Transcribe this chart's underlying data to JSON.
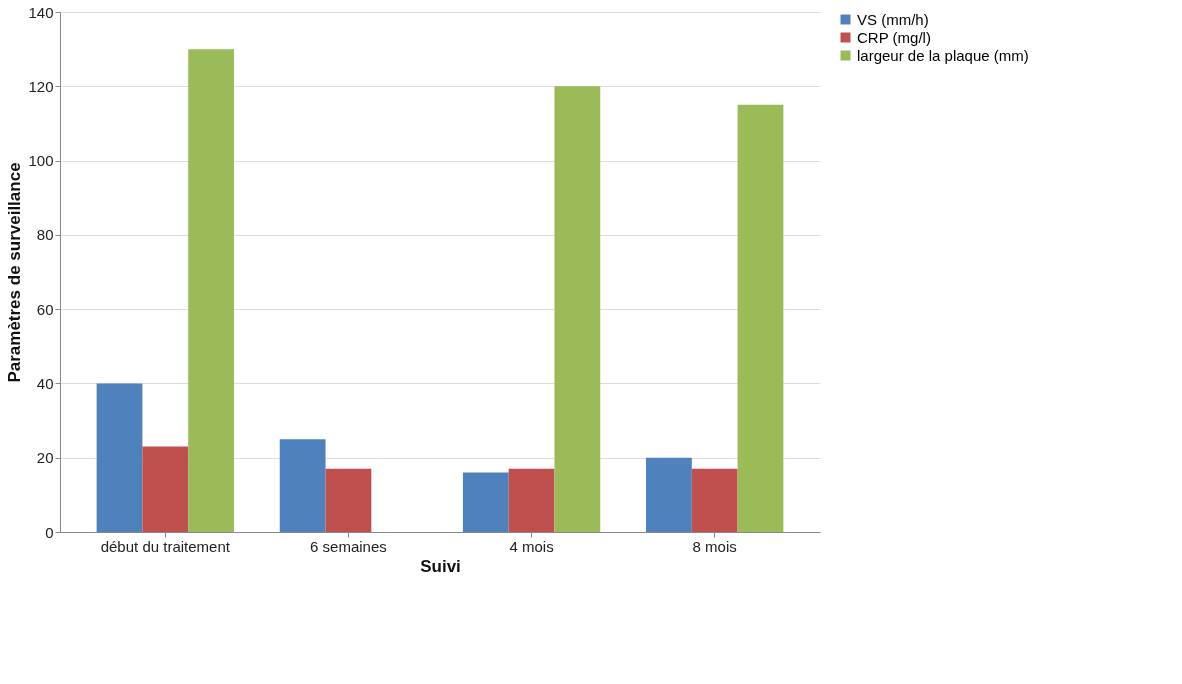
{
  "chart_data": {
    "type": "bar",
    "xlabel": "Suivi",
    "ylabel": "Paramètres de surveillance",
    "categories": [
      "début du traitement",
      "6 semaines",
      "4 mois",
      "8 mois"
    ],
    "series": [
      {
        "name": "VS (mm/h)",
        "color": "#4f81bd",
        "values": [
          40,
          25,
          16,
          20
        ]
      },
      {
        "name": "CRP (mg/l)",
        "color": "#c0504d",
        "values": [
          23,
          17,
          17,
          17
        ]
      },
      {
        "name": "largeur de la plaque (mm)",
        "color": "#9bbb59",
        "values": [
          130,
          null,
          120,
          115
        ]
      }
    ],
    "ylim": [
      0,
      140
    ],
    "yticks": [
      0,
      20,
      40,
      60,
      80,
      100,
      120,
      140
    ],
    "grid": "y",
    "legend": "right"
  }
}
